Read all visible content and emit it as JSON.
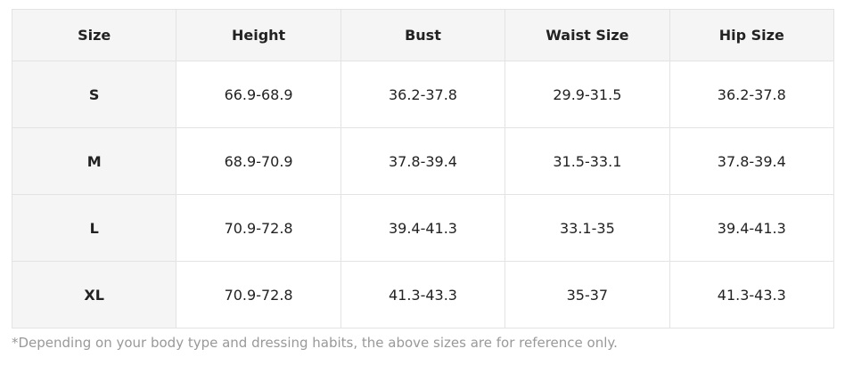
{
  "table": {
    "header": [
      "Size",
      "Height",
      "Bust",
      "Waist Size",
      "Hip Size"
    ],
    "rows": [
      [
        "S",
        "66.9-68.9",
        "36.2-37.8",
        "29.9-31.5",
        "36.2-37.8"
      ],
      [
        "M",
        "68.9-70.9",
        "37.8-39.4",
        "31.5-33.1",
        "37.8-39.4"
      ],
      [
        "L",
        "70.9-72.8",
        "39.4-41.3",
        "33.1-35",
        "39.4-41.3"
      ],
      [
        "XL",
        "70.9-72.8",
        "41.3-43.3",
        "35-37",
        "41.3-43.3"
      ]
    ]
  },
  "footnote": "*Depending on your body type and dressing habits, the above sizes are for reference only."
}
